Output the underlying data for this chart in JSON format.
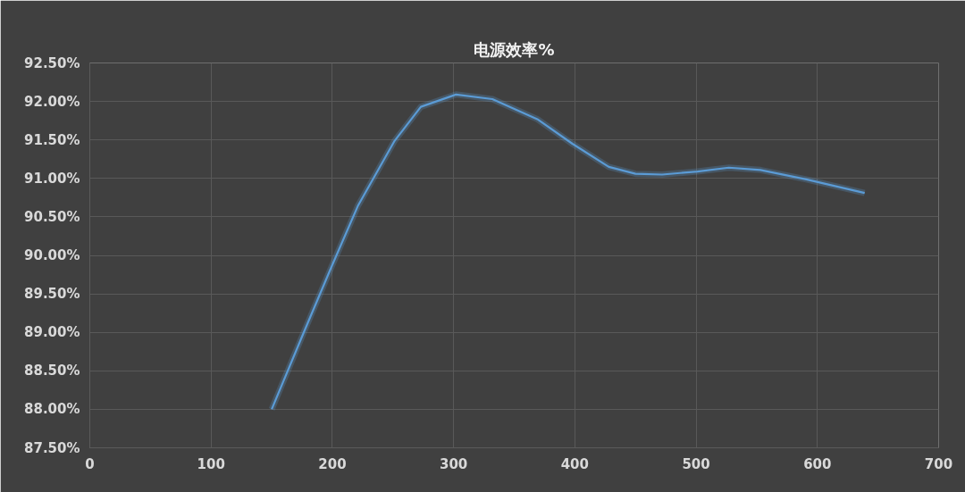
{
  "chart_data": {
    "type": "line",
    "title": "电源效率%",
    "x": [
      150,
      177,
      199,
      221,
      251,
      273,
      302,
      332,
      369,
      398,
      428,
      450,
      472,
      501,
      527,
      553,
      590,
      639
    ],
    "series": [
      {
        "color": "#5b9bd5",
        "values": [
          88.0,
          89.02,
          89.84,
          90.64,
          91.48,
          91.93,
          92.09,
          92.03,
          91.77,
          91.45,
          91.15,
          91.06,
          91.05,
          91.09,
          91.14,
          91.11,
          90.99,
          90.81
        ]
      }
    ],
    "xlim": [
      0,
      700
    ],
    "xticks": [
      0,
      100,
      200,
      300,
      400,
      500,
      600,
      700
    ],
    "ylim": [
      87.5,
      92.5
    ],
    "yticks": [
      {
        "value": 87.5,
        "label": "87.50%"
      },
      {
        "value": 88.0,
        "label": "88.00%"
      },
      {
        "value": 88.5,
        "label": "88.50%"
      },
      {
        "value": 89.0,
        "label": "89.00%"
      },
      {
        "value": 89.5,
        "label": "89.50%"
      },
      {
        "value": 90.0,
        "label": "90.00%"
      },
      {
        "value": 90.5,
        "label": "90.50%"
      },
      {
        "value": 91.0,
        "label": "91.00%"
      },
      {
        "value": 91.5,
        "label": "91.50%"
      },
      {
        "value": 92.0,
        "label": "92.00%"
      },
      {
        "value": 92.5,
        "label": "92.50%"
      }
    ],
    "grid": true,
    "marker": "none",
    "line_style": "solid"
  }
}
